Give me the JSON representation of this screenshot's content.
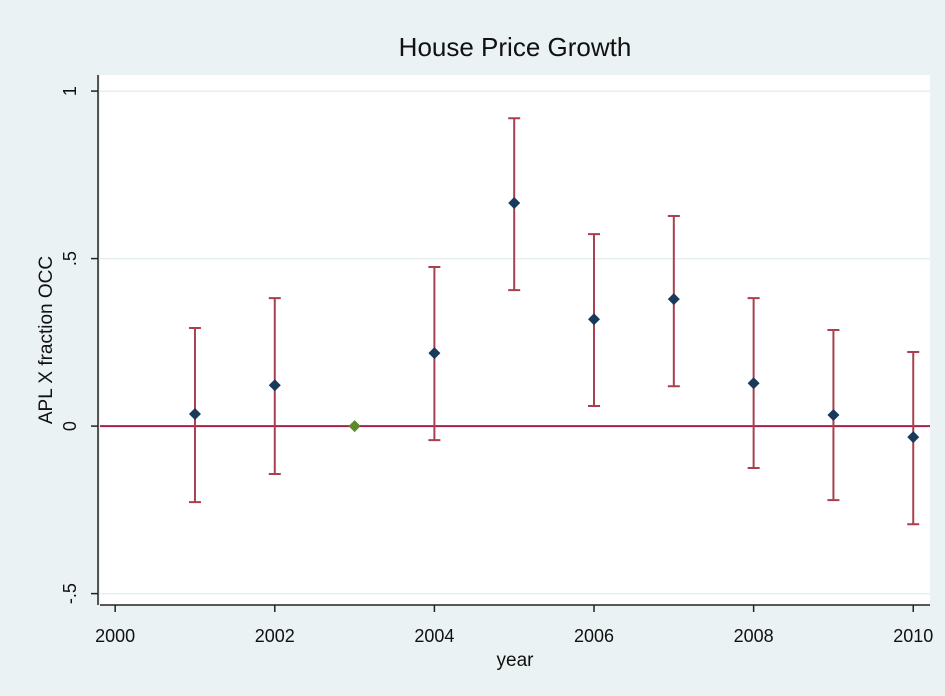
{
  "chart_data": {
    "type": "errorbar",
    "title": "House Price Growth",
    "x_label": "year",
    "y_label": "APL X fraction OCC",
    "x": [
      2001,
      2002,
      2003,
      2004,
      2005,
      2006,
      2007,
      2008,
      2009,
      2010
    ],
    "values": [
      0.036,
      0.122,
      0,
      0.218,
      0.666,
      0.319,
      0.379,
      0.128,
      0.033,
      -0.033
    ],
    "lower": [
      -0.227,
      -0.143,
      null,
      -0.042,
      0.406,
      0.06,
      0.119,
      -0.125,
      -0.221,
      -0.293
    ],
    "upper": [
      0.293,
      0.382,
      null,
      0.475,
      0.919,
      0.573,
      0.627,
      0.382,
      0.287,
      0.221
    ],
    "point_colors": [
      "#1a3a5c",
      "#1a3a5c",
      "#5a8a2a",
      "#1a3a5c",
      "#1a3a5c",
      "#1a3a5c",
      "#1a3a5c",
      "#1a3a5c",
      "#1a3a5c",
      "#1a3a5c"
    ],
    "ci_color": "#a8404f",
    "ref_line": 0,
    "ref_color": "#a8204a",
    "xlim": [
      1999.81,
      2010.21
    ],
    "xticks": [
      2000,
      2002,
      2004,
      2006,
      2008,
      2010
    ],
    "ylim": [
      -0.534,
      1.048
    ],
    "yticks": [
      {
        "value": -0.5,
        "label": "-.5"
      },
      0,
      {
        "value": 0.5,
        "label": ".5"
      },
      1
    ],
    "grid": true
  }
}
